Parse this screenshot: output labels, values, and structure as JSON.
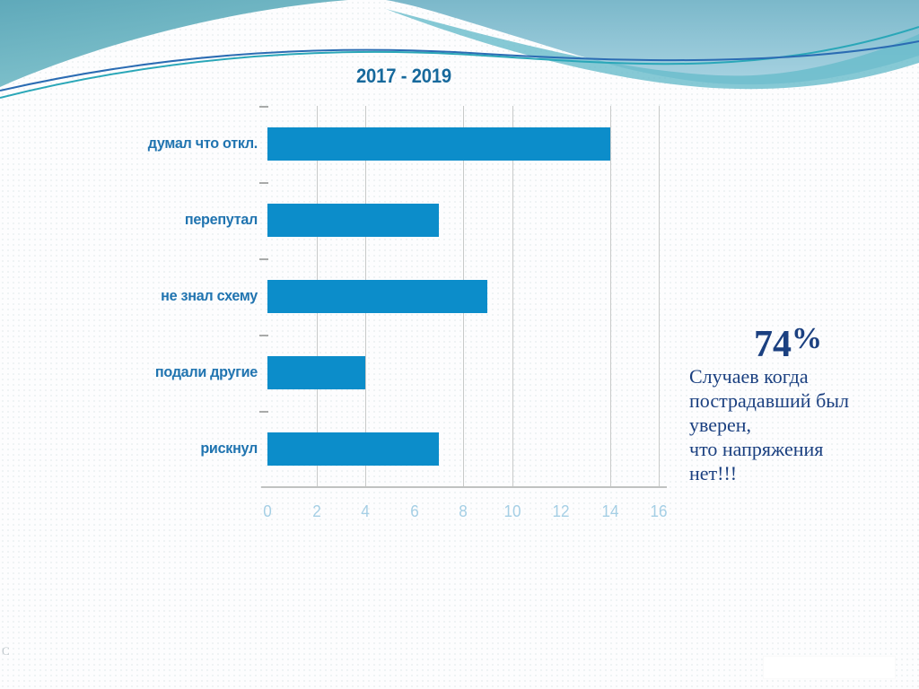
{
  "slide": {
    "title": "2017 - 2019"
  },
  "chart_data": {
    "type": "bar",
    "orientation": "horizontal",
    "title": "2017 - 2019",
    "categories": [
      "думал что откл.",
      "перепутал",
      "не знал схему",
      "подали другие",
      "рискнул"
    ],
    "values": [
      14,
      7,
      9,
      4,
      7
    ],
    "xlabel": "",
    "ylabel": "",
    "xlim": [
      0,
      16
    ],
    "x_ticks": [
      0,
      2,
      4,
      6,
      8,
      10,
      12,
      14,
      16
    ],
    "gridline_values": [
      2,
      4,
      8,
      10,
      14,
      16
    ],
    "grid": true,
    "legend": "none",
    "bar_color": "#0c8dca",
    "category_label_color": "#2074b0",
    "tick_label_color": "#a5cfe5",
    "title_color": "#17699C",
    "gridline_color": "#c8cac9"
  },
  "annotation": {
    "percent_value": "74",
    "percent_sign": "%",
    "lines": [
      "Случаев когда",
      "пострадавший был",
      "уверен,",
      "что напряжения",
      "нет!!!"
    ],
    "full_text": "74% Случаев когда пострадавший был уверен, что напряжения нет!!!",
    "text_color": "#1b4080"
  },
  "decor": {
    "header_teal_dark": "#5fa9ba",
    "header_teal_light": "#86c6cf",
    "header_sky_top": "#7bb8ca",
    "header_sky_bottom": "#a8d3e2",
    "band_teal": "#68bcca",
    "line_teal": "#2aa7b8",
    "line_blue": "#2b6cb3",
    "corner_mark": "C"
  }
}
